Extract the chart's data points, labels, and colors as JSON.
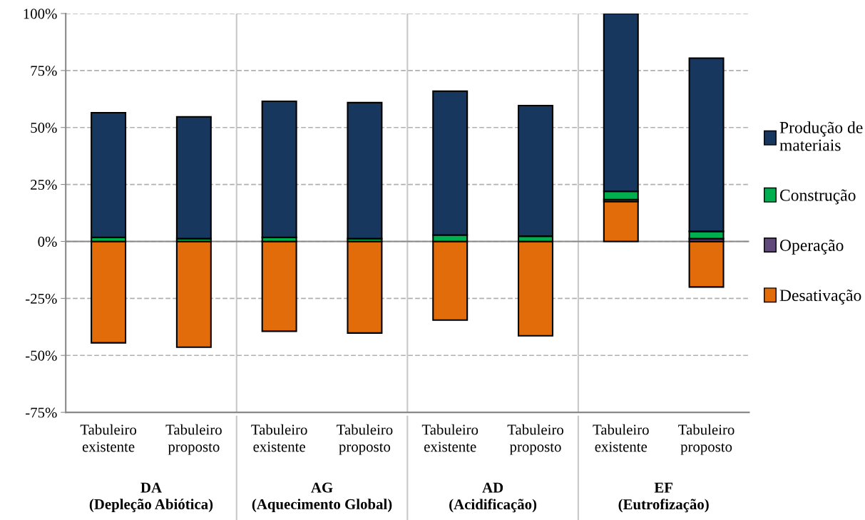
{
  "chart_data": {
    "type": "bar",
    "stacked": true,
    "categories": [
      "Tabuleiro\nexistente",
      "Tabuleiro\nproposto",
      "Tabuleiro\nexistente",
      "Tabuleiro\nproposto",
      "Tabuleiro\nexistente",
      "Tabuleiro\nproposto",
      "Tabuleiro\nexistente",
      "Tabuleiro\nproposto"
    ],
    "series": [
      {
        "name": "Desativação",
        "color": "#e36c0a",
        "values": [
          -44.5,
          -46.4,
          -39.4,
          -40.2,
          -34.5,
          -41.4,
          17.5,
          -20.0
        ]
      },
      {
        "name": "Operação",
        "color": "#604a7b",
        "values": [
          0,
          0,
          0,
          0,
          0,
          0,
          0.9,
          1.2
        ]
      },
      {
        "name": "Construção",
        "color": "#00b050",
        "values": [
          1.8,
          1.2,
          1.8,
          1.2,
          2.8,
          2.3,
          3.6,
          3.2
        ]
      },
      {
        "name": "Produção de\nmateriais",
        "color": "#17375e",
        "values": [
          54.7,
          53.5,
          59.7,
          59.7,
          63.1,
          57.3,
          78.0,
          76.0
        ]
      }
    ],
    "ylim": [
      -75,
      100
    ],
    "yticks": [
      {
        "value": -75,
        "label": "-75%"
      },
      {
        "value": -50,
        "label": "-50%"
      },
      {
        "value": -25,
        "label": "-25%"
      },
      {
        "value": 0,
        "label": "0%"
      },
      {
        "value": 25,
        "label": "25%"
      },
      {
        "value": 50,
        "label": "50%"
      },
      {
        "value": 75,
        "label": "75%"
      },
      {
        "value": 100,
        "label": "100%"
      }
    ],
    "grid": "y",
    "legend": "right",
    "annotations": [
      "DA\n(Depleção Abiótica)",
      "AG\n(Aquecimento Global)",
      "AD\n(Acidificação)",
      "EF\n(Eutrofização)"
    ]
  }
}
